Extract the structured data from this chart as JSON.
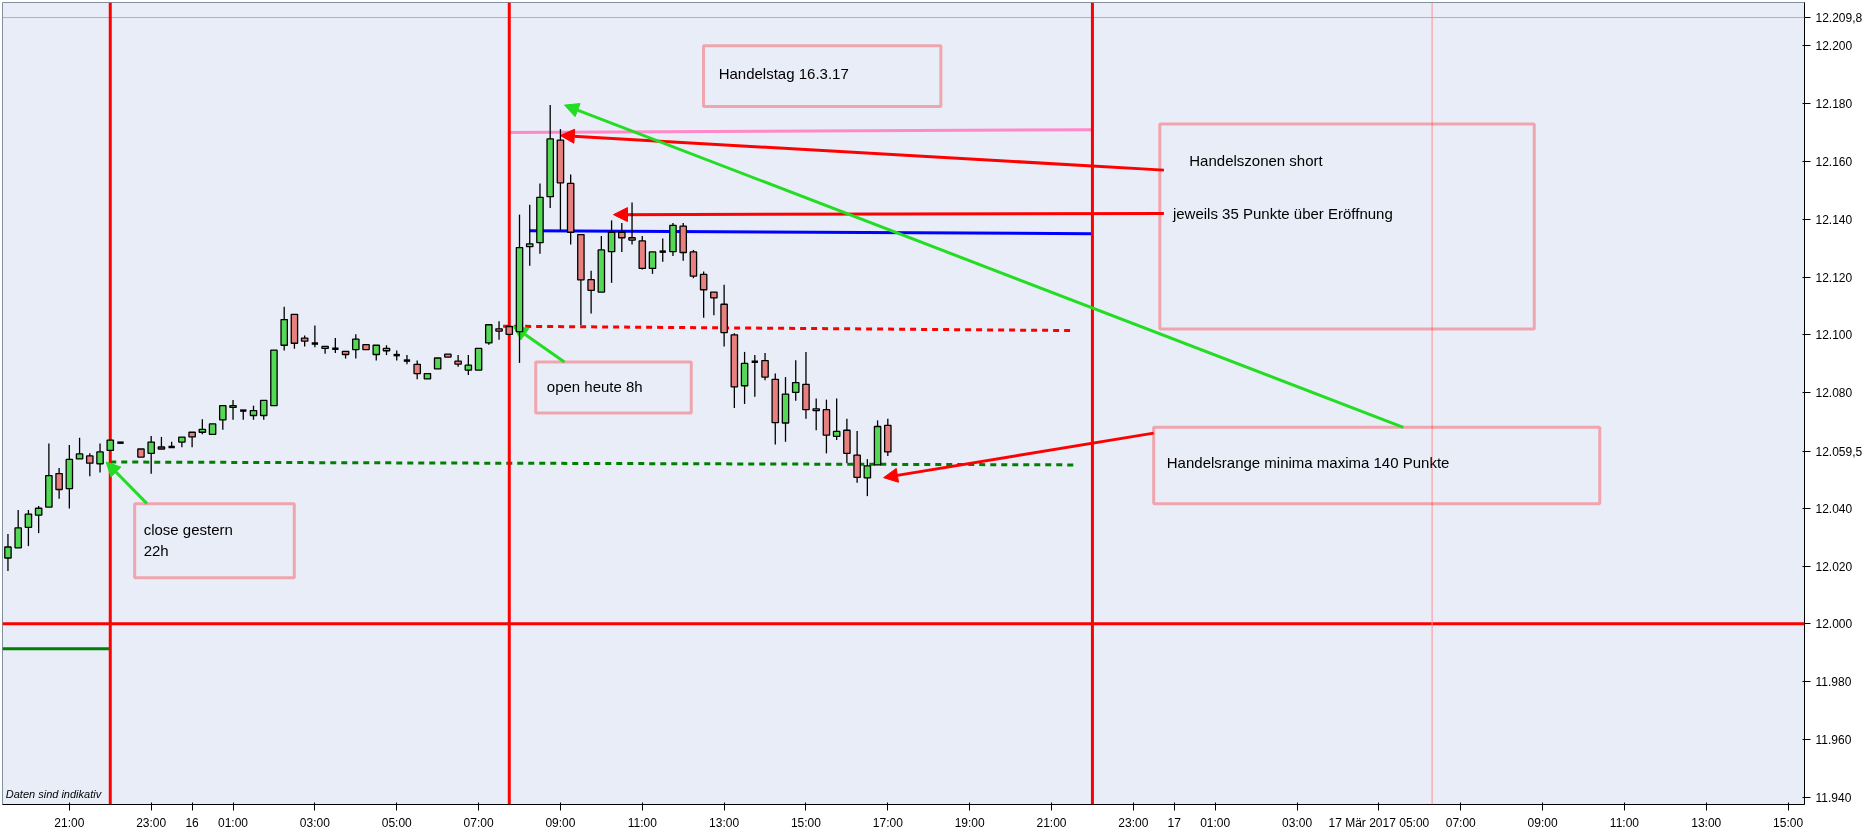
{
  "chart_data": {
    "type": "candlestick",
    "x": [
      "2017-03-15T19:30",
      "2017-03-15T19:45",
      "2017-03-15T20:00",
      "2017-03-15T20:15",
      "2017-03-15T20:30",
      "2017-03-15T20:45",
      "2017-03-15T21:00",
      "2017-03-15T21:15",
      "2017-03-15T21:30",
      "2017-03-15T21:45",
      "2017-03-15T22:00",
      "2017-03-15T22:15",
      "2017-03-15T22:45",
      "2017-03-15T23:00",
      "2017-03-15T23:15",
      "2017-03-15T23:30",
      "2017-03-15T23:45",
      "2017-03-16T00:00",
      "2017-03-16T00:15",
      "2017-03-16T00:30",
      "2017-03-16T00:45",
      "2017-03-16T01:00",
      "2017-03-16T01:15",
      "2017-03-16T01:30",
      "2017-03-16T01:45",
      "2017-03-16T02:00",
      "2017-03-16T02:15",
      "2017-03-16T02:30",
      "2017-03-16T02:45",
      "2017-03-16T03:00",
      "2017-03-16T03:15",
      "2017-03-16T03:30",
      "2017-03-16T03:45",
      "2017-03-16T04:00",
      "2017-03-16T04:15",
      "2017-03-16T04:30",
      "2017-03-16T04:45",
      "2017-03-16T05:00",
      "2017-03-16T05:15",
      "2017-03-16T05:30",
      "2017-03-16T05:45",
      "2017-03-16T06:00",
      "2017-03-16T06:15",
      "2017-03-16T06:30",
      "2017-03-16T06:45",
      "2017-03-16T07:00",
      "2017-03-16T07:15",
      "2017-03-16T07:30",
      "2017-03-16T07:45",
      "2017-03-16T08:00",
      "2017-03-16T08:15",
      "2017-03-16T08:30",
      "2017-03-16T08:45",
      "2017-03-16T09:00",
      "2017-03-16T09:15",
      "2017-03-16T09:30",
      "2017-03-16T09:45",
      "2017-03-16T10:00",
      "2017-03-16T10:15",
      "2017-03-16T10:30",
      "2017-03-16T10:45",
      "2017-03-16T11:00",
      "2017-03-16T11:15",
      "2017-03-16T11:30",
      "2017-03-16T11:45",
      "2017-03-16T12:00",
      "2017-03-16T12:15",
      "2017-03-16T12:30",
      "2017-03-16T12:45",
      "2017-03-16T13:00",
      "2017-03-16T13:15",
      "2017-03-16T13:30",
      "2017-03-16T13:45",
      "2017-03-16T14:00",
      "2017-03-16T14:15",
      "2017-03-16T14:30",
      "2017-03-16T14:45",
      "2017-03-16T15:00",
      "2017-03-16T15:15",
      "2017-03-16T15:30",
      "2017-03-16T15:45",
      "2017-03-16T16:00",
      "2017-03-16T16:15",
      "2017-03-16T16:30",
      "2017-03-16T16:45",
      "2017-03-16T17:00"
    ],
    "ohlc": [
      [
        12022.8,
        12031.1,
        12018.3,
        12026.6
      ],
      [
        12026.3,
        12039.4,
        12026.3,
        12033.2
      ],
      [
        12033.4,
        12039.4,
        12026.9,
        12038.0
      ],
      [
        12037.6,
        12040.8,
        12031.4,
        12040.0
      ],
      [
        12040.4,
        12062.4,
        12040.4,
        12051.3
      ],
      [
        12052.0,
        12053.9,
        12043.3,
        12046.5
      ],
      [
        12046.8,
        12061.9,
        12039.9,
        12056.9
      ],
      [
        12057.1,
        12064.4,
        12057.1,
        12058.8
      ],
      [
        12058.1,
        12059.0,
        12051.1,
        12055.6
      ],
      [
        12055.4,
        12062.4,
        12052.4,
        12059.5
      ],
      [
        12060.0,
        12063.6,
        12060.0,
        12063.6
      ],
      [
        12062.7,
        12062.7,
        12062.7,
        12062.7
      ],
      [
        12060.5,
        12060.5,
        12057.7,
        12057.7
      ],
      [
        12059.0,
        12065.0,
        12051.9,
        12062.9
      ],
      [
        12061.2,
        12064.7,
        12060.5,
        12060.5
      ],
      [
        12061.2,
        12063.0,
        12061.2,
        12061.2
      ],
      [
        12062.9,
        12064.6,
        12061.1,
        12064.6
      ],
      [
        12066.3,
        12066.3,
        12061.1,
        12064.7
      ],
      [
        12066.3,
        12070.8,
        12065.6,
        12067.3
      ],
      [
        12065.6,
        12069.2,
        12065.6,
        12069.2
      ],
      [
        12070.6,
        12075.5,
        12067.2,
        12075.5
      ],
      [
        12074.9,
        12077.5,
        12070.6,
        12075.5
      ],
      [
        12073.8,
        12073.8,
        12070.6,
        12073.8
      ],
      [
        12072.1,
        12075.5,
        12070.6,
        12073.8
      ],
      [
        12072.1,
        12077.3,
        12070.6,
        12077.3
      ],
      [
        12075.5,
        12094.7,
        12075.5,
        12094.7
      ],
      [
        12096.4,
        12109.7,
        12094.6,
        12105.3
      ],
      [
        12107.1,
        12107.1,
        12095.2,
        12097.1
      ],
      [
        12098.9,
        12099.8,
        12096.0,
        12097.8
      ],
      [
        12097.0,
        12103.2,
        12095.7,
        12097.0
      ],
      [
        12095.3,
        12096.0,
        12093.5,
        12096.0
      ],
      [
        12095.2,
        12098.9,
        12093.7,
        12095.2
      ],
      [
        12094.3,
        12094.3,
        12091.8,
        12093.2
      ],
      [
        12094.9,
        12100.2,
        12091.8,
        12098.5
      ],
      [
        12096.6,
        12096.6,
        12094.9,
        12094.9
      ],
      [
        12093.2,
        12096.4,
        12091.1,
        12096.4
      ],
      [
        12095.3,
        12096.4,
        12093.0,
        12094.5
      ],
      [
        12093.0,
        12094.6,
        12091.1,
        12093.0
      ],
      [
        12091.1,
        12093.0,
        12089.8,
        12091.1
      ],
      [
        12089.8,
        12091.1,
        12084.6,
        12086.6
      ],
      [
        12084.8,
        12086.6,
        12084.8,
        12086.6
      ],
      [
        12088.2,
        12092.0,
        12088.2,
        12092.0
      ],
      [
        12093.3,
        12093.3,
        12092.3,
        12092.3
      ],
      [
        12090.9,
        12093.0,
        12089.0,
        12089.9
      ],
      [
        12087.8,
        12093.0,
        12086.1,
        12089.5
      ],
      [
        12087.8,
        12095.3,
        12087.8,
        12095.3
      ],
      [
        12097.2,
        12103.5,
        12096.6,
        12103.5
      ],
      [
        12102.1,
        12104.7,
        12098.3,
        12101.3
      ],
      [
        12102.9,
        12102.9,
        12100.2,
        12100.2
      ],
      [
        12101.1,
        12141.6,
        12090.3,
        12130.2
      ],
      [
        12130.5,
        12145.0,
        12123.9,
        12131.5
      ],
      [
        12131.9,
        12152.4,
        12128.1,
        12147.6
      ],
      [
        12147.8,
        12179.5,
        12143.9,
        12167.8
      ],
      [
        12167.4,
        12171.2,
        12136.2,
        12152.6
      ],
      [
        12152.4,
        12155.5,
        12131.3,
        12135.5
      ],
      [
        12134.7,
        12134.7,
        12103.4,
        12119.0
      ],
      [
        12119.1,
        12122.2,
        12107.4,
        12115.4
      ],
      [
        12114.8,
        12134.2,
        12114.8,
        12129.4
      ],
      [
        12128.8,
        12139.6,
        12118.0,
        12135.5
      ],
      [
        12135.5,
        12138.7,
        12128.7,
        12133.6
      ],
      [
        12133.6,
        12145.8,
        12131.3,
        12132.8
      ],
      [
        12132.5,
        12134.2,
        12122.6,
        12123.0
      ],
      [
        12123.0,
        12128.7,
        12121.1,
        12128.7
      ],
      [
        12128.8,
        12133.3,
        12125.3,
        12128.8
      ],
      [
        12128.8,
        12138.7,
        12127.3,
        12137.9
      ],
      [
        12137.6,
        12138.7,
        12125.6,
        12128.5
      ],
      [
        12128.7,
        12129.4,
        12119.6,
        12120.3
      ],
      [
        12120.9,
        12121.9,
        12105.9,
        12115.6
      ],
      [
        12114.8,
        12114.8,
        12106.8,
        12112.8
      ],
      [
        12110.6,
        12117.3,
        12096.0,
        12100.8
      ],
      [
        12100.0,
        12100.6,
        12074.7,
        12082.0
      ],
      [
        12082.4,
        12094.1,
        12076.1,
        12090.1
      ],
      [
        12090.7,
        12093.0,
        12078.6,
        12090.7
      ],
      [
        12091.1,
        12093.7,
        12084.3,
        12085.4
      ],
      [
        12084.6,
        12086.6,
        12062.1,
        12069.6
      ],
      [
        12069.5,
        12085.4,
        12063.0,
        12079.5
      ],
      [
        12080.1,
        12091.2,
        12077.2,
        12083.5
      ],
      [
        12082.9,
        12094.1,
        12071.0,
        12074.1
      ],
      [
        12074.4,
        12078.0,
        12067.0,
        12073.8
      ],
      [
        12074.1,
        12077.6,
        12059.0,
        12065.3
      ],
      [
        12064.9,
        12078.0,
        12063.6,
        12066.6
      ],
      [
        12067.0,
        12071.0,
        12055.6,
        12059.0
      ],
      [
        12058.4,
        12066.7,
        12048.8,
        12050.7
      ],
      [
        12050.5,
        12057.0,
        12044.2,
        12054.7
      ],
      [
        12055.0,
        12070.4,
        12055.0,
        12068.3
      ],
      [
        12068.7,
        12071.0,
        12058.1,
        12059.5
      ]
    ],
    "series": [
      {
        "type": "line",
        "x": [
          "2017-03-15T19:22",
          "2017-03-15T22:00"
        ],
        "values": [
          11991.4,
          11991.4
        ],
        "color": "#008000",
        "line_style": "solid"
      },
      {
        "type": "line",
        "x": [
          "2017-03-16T07:45",
          "2017-03-16T22:00"
        ],
        "values": [
          12170,
          12171
        ],
        "color": "#ff88c8",
        "line_style": "solid"
      },
      {
        "type": "line",
        "x": [
          "2017-03-16T08:15",
          "2017-03-16T22:00"
        ],
        "values": [
          12136,
          12135
        ],
        "color": "#0000ff",
        "line_style": "solid"
      },
      {
        "type": "line",
        "x": [
          "2017-03-16T07:36",
          "2017-03-16T21:30"
        ],
        "values": [
          12103,
          12101.5
        ],
        "color": "#ff0000",
        "line_style": "dashed"
      },
      {
        "type": "line",
        "x": [
          "2017-03-15T22:00",
          "2017-03-16T21:36"
        ],
        "values": [
          12056,
          12055
        ],
        "color": "#008000",
        "line_style": "dashed"
      }
    ],
    "ref_lines": [
      {
        "axis": "y",
        "value": 12000,
        "color": "#ff0000"
      },
      {
        "axis": "y",
        "value": 12209.8,
        "color": "#ff9090"
      },
      {
        "axis": "x",
        "value": "2017-03-15T22:00",
        "color": "#ff0000"
      },
      {
        "axis": "x",
        "value": "2017-03-16T07:45",
        "color": "#ff0000"
      },
      {
        "axis": "x",
        "value": "2017-03-16T22:00",
        "color": "#ff0000"
      },
      {
        "axis": "x",
        "value": "2017-03-17T06:18",
        "color": "#ff9090"
      }
    ],
    "annotations": [
      "Handelstag 16.3.17",
      "Handelszonen short",
      "jeweils 35 Punkte über Eröffnung",
      {
        "text": "open heute 8h",
        "x": "2017-03-16T07:51",
        "y": 12103
      },
      {
        "text": "close gestern\n22h",
        "x": "2017-03-15T21:54",
        "y": 12056
      },
      "Handelsrange minima maxima 140 Punkte",
      "Daten sind indikativ"
    ],
    "xlim": [
      "2017-03-15T19:22",
      "2017-03-17T15:24"
    ],
    "xticks": [
      {
        "value": "2017-03-15T21:00",
        "label": "21:00"
      },
      {
        "value": "2017-03-15T23:00",
        "label": "23:00"
      },
      {
        "value": "2017-03-16T00:00",
        "label": "16"
      },
      {
        "value": "2017-03-16T01:00",
        "label": "01:00"
      },
      {
        "value": "2017-03-16T03:00",
        "label": "03:00"
      },
      {
        "value": "2017-03-16T05:00",
        "label": "05:00"
      },
      {
        "value": "2017-03-16T07:00",
        "label": "07:00"
      },
      {
        "value": "2017-03-16T09:00",
        "label": "09:00"
      },
      {
        "value": "2017-03-16T11:00",
        "label": "11:00"
      },
      {
        "value": "2017-03-16T13:00",
        "label": "13:00"
      },
      {
        "value": "2017-03-16T15:00",
        "label": "15:00"
      },
      {
        "value": "2017-03-16T17:00",
        "label": "17:00"
      },
      {
        "value": "2017-03-16T19:00",
        "label": "19:00"
      },
      {
        "value": "2017-03-16T21:00",
        "label": "21:00"
      },
      {
        "value": "2017-03-16T23:00",
        "label": "23:00"
      },
      {
        "value": "2017-03-17T00:00",
        "label": "17"
      },
      {
        "value": "2017-03-17T01:00",
        "label": "01:00"
      },
      {
        "value": "2017-03-17T03:00",
        "label": "03:00"
      },
      {
        "value": "2017-03-17T05:00",
        "label": "17 Mär 2017 05:00"
      },
      {
        "value": "2017-03-17T07:00",
        "label": "07:00"
      },
      {
        "value": "2017-03-17T09:00",
        "label": "09:00"
      },
      {
        "value": "2017-03-17T11:00",
        "label": "11:00"
      },
      {
        "value": "2017-03-17T13:00",
        "label": "13:00"
      },
      {
        "value": "2017-03-17T15:00",
        "label": "15:00"
      }
    ],
    "ylim": [
      11937.5,
      12215
    ],
    "yticks": [
      {
        "value": 11940,
        "label": "11.940"
      },
      {
        "value": 11960,
        "label": "11.960"
      },
      {
        "value": 11980,
        "label": "11.980"
      },
      {
        "value": 12000,
        "label": "12.000"
      },
      {
        "value": 12020,
        "label": "12.020"
      },
      {
        "value": 12040,
        "label": "12.040"
      },
      {
        "value": 12059.5,
        "label": "12.059,5"
      },
      {
        "value": 12080,
        "label": "12.080"
      },
      {
        "value": 12100,
        "label": "12.100"
      },
      {
        "value": 12120,
        "label": "12.120"
      },
      {
        "value": 12140,
        "label": "12.140"
      },
      {
        "value": 12160,
        "label": "12.160"
      },
      {
        "value": 12180,
        "label": "12.180"
      },
      {
        "value": 12200,
        "label": "12.200"
      },
      {
        "value": 12209.8,
        "label": "12.209,8"
      }
    ],
    "grid": false
  }
}
